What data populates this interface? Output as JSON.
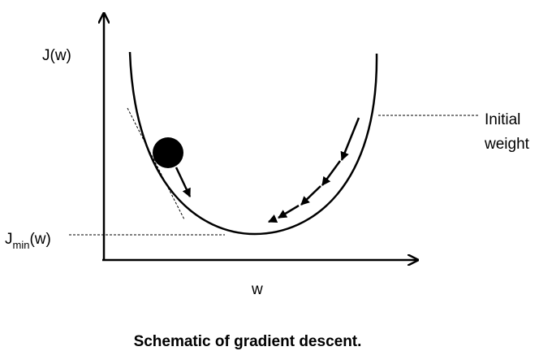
{
  "diagram": {
    "y_axis_label": "J(w)",
    "x_axis_label": "w",
    "jmin_label": {
      "base": "J",
      "subscript": "min",
      "suffix": "(w)"
    },
    "initial_weight_label": {
      "line1": "Initial",
      "line2": "weight"
    },
    "caption": "Schematic of gradient descent."
  }
}
